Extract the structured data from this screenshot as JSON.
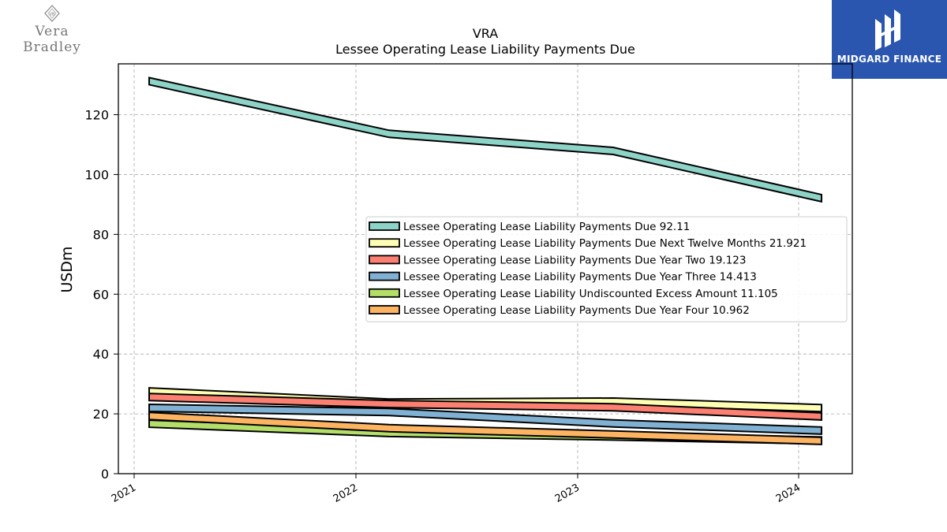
{
  "logos": {
    "left": {
      "text": "Vera Bradley",
      "mark": "VB"
    },
    "right": {
      "text": "MIDGARD FINANCE"
    }
  },
  "colors": {
    "edge": "#000000",
    "grid": "#aaaaaa"
  },
  "chart_data": {
    "type": "line",
    "title": "VRA",
    "subtitle": "Lessee Operating Lease Liability Payments Due",
    "xlabel": "",
    "ylabel": "USDm",
    "x": [
      "2021",
      "2022",
      "2023",
      "2024"
    ],
    "ylim": [
      0,
      137
    ],
    "yticks": [
      0,
      20,
      40,
      60,
      80,
      100,
      120
    ],
    "grid": true,
    "legend_position": "center-right",
    "series": [
      {
        "name": "Lessee Operating Lease Liability Payments Due",
        "legend_value": "92.11",
        "color": "#8dd3c7",
        "values": [
          131.2,
          113.6,
          107.9,
          92.11
        ]
      },
      {
        "name": "Lessee Operating Lease Liability Payments Due Next Twelve Months",
        "legend_value": "21.921",
        "color": "#ffffb3",
        "values": [
          27.5,
          23.8,
          24.1,
          21.921
        ]
      },
      {
        "name": "Lessee Operating Lease Liability Payments Due Year Two",
        "legend_value": "19.123",
        "color": "#fb8072",
        "values": [
          25.6,
          23.3,
          22.2,
          19.123
        ]
      },
      {
        "name": "Lessee Operating Lease Liability Payments Due Year Three",
        "legend_value": "14.413",
        "color": "#80b1d3",
        "values": [
          22.0,
          20.6,
          16.8,
          14.413
        ]
      },
      {
        "name": "Lessee Operating Lease Liability Undiscounted Excess Amount",
        "legend_value": "11.105",
        "color": "#b3de69",
        "values": [
          16.7,
          13.6,
          12.4,
          11.105
        ]
      },
      {
        "name": "Lessee Operating Lease Liability Payments Due Year Four",
        "legend_value": "10.962",
        "color": "#fdb462",
        "values": [
          19.3,
          15.2,
          13.1,
          10.962
        ]
      }
    ]
  }
}
